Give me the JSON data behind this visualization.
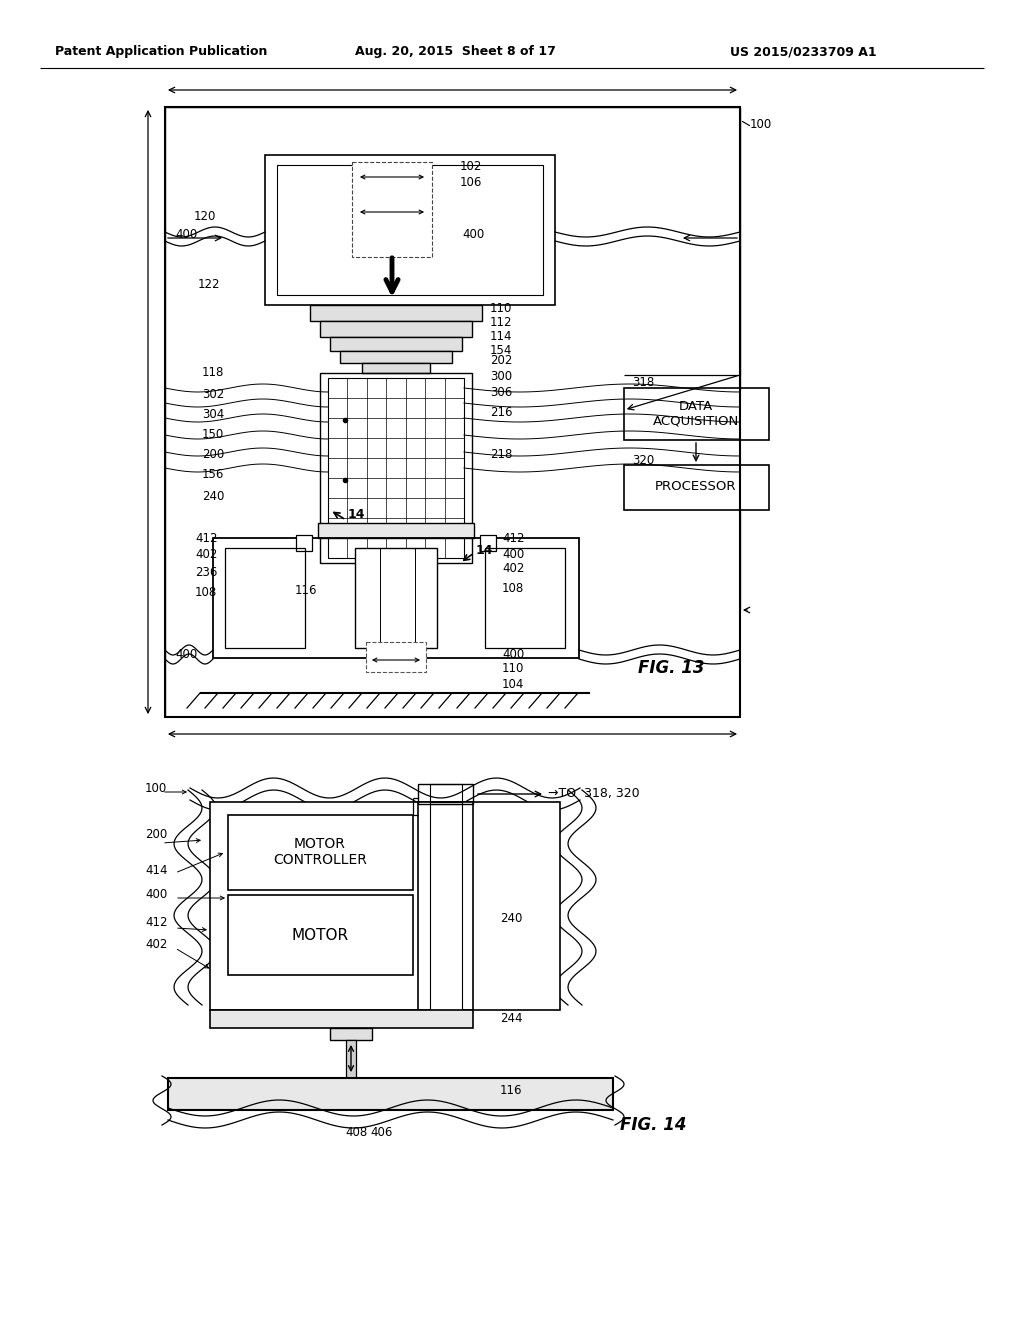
{
  "header_left": "Patent Application Publication",
  "header_mid": "Aug. 20, 2015  Sheet 8 of 17",
  "header_right": "US 2015/0233709 A1",
  "fig13_label": "FIG. 13",
  "fig14_label": "FIG. 14",
  "bg_color": "#ffffff",
  "line_color": "#000000",
  "box_data_acq": "DATA\nACQUISITION",
  "box_processor": "PROCESSOR",
  "box_motor_ctrl": "MOTOR\nCONTROLLER",
  "box_motor": "MOTOR",
  "to_label": "→TO  318, 320"
}
